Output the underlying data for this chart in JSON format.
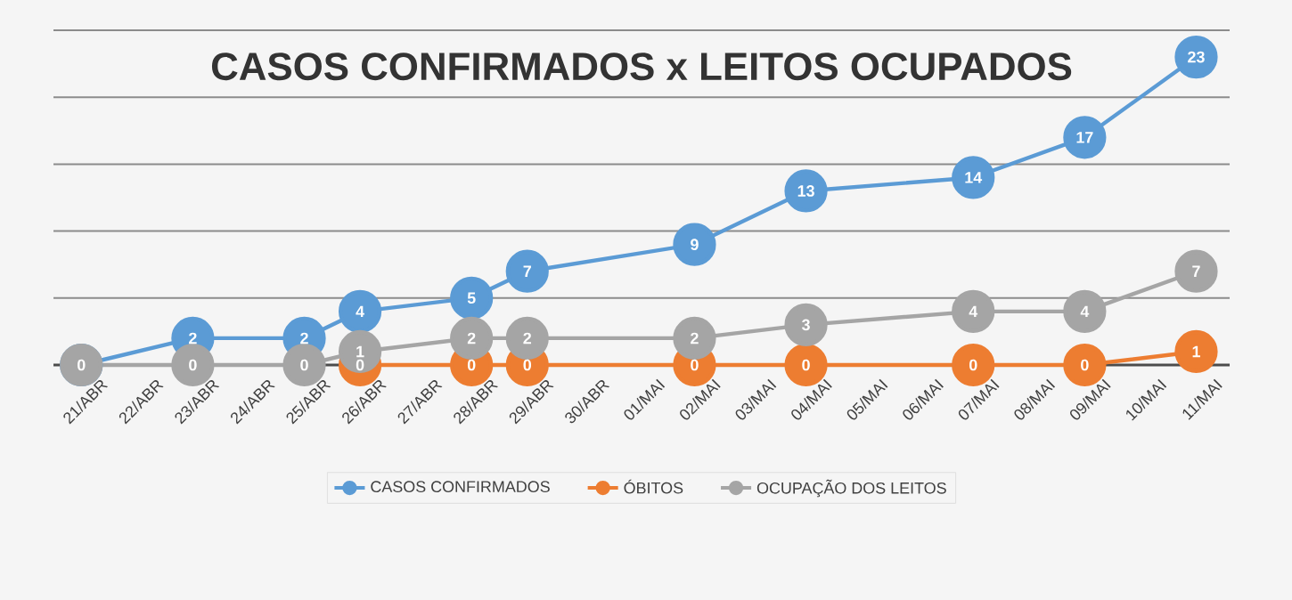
{
  "chart_data": {
    "type": "line",
    "title": "CASOS CONFIRMADOS x LEITOS OCUPADOS",
    "categories": [
      "21/ABR",
      "22/ABR",
      "23/ABR",
      "24/ABR",
      "25/ABR",
      "26/ABR",
      "27/ABR",
      "28/ABR",
      "29/ABR",
      "30/ABR",
      "01/MAI",
      "02/MAI",
      "03/MAI",
      "04/MAI",
      "05/MAI",
      "06/MAI",
      "07/MAI",
      "08/MAI",
      "09/MAI",
      "10/MAI",
      "11/MAI"
    ],
    "series": [
      {
        "name": "CASOS CONFIRMADOS",
        "color": "#5b9bd5",
        "values": [
          0,
          null,
          2,
          null,
          2,
          4,
          null,
          5,
          7,
          null,
          null,
          9,
          null,
          13,
          null,
          null,
          14,
          null,
          17,
          null,
          23
        ],
        "value_labels": [
          null,
          null,
          "2",
          null,
          "2",
          "4",
          null,
          "5",
          "7",
          null,
          null,
          "9",
          null,
          "13",
          null,
          null,
          "14",
          null,
          "17",
          null,
          "23"
        ]
      },
      {
        "name": "ÓBITOS",
        "color": "#ed7d31",
        "values": [
          null,
          null,
          null,
          null,
          null,
          0,
          null,
          0,
          0,
          null,
          null,
          0,
          null,
          0,
          null,
          null,
          0,
          null,
          0,
          null,
          1
        ],
        "value_labels": [
          null,
          null,
          null,
          null,
          null,
          "0",
          null,
          "0",
          "0",
          null,
          null,
          "0",
          null,
          "0",
          null,
          null,
          "0",
          null,
          "0",
          null,
          "1"
        ]
      },
      {
        "name": "OCUPAÇÃO DOS LEITOS",
        "color": "#a5a5a5",
        "values": [
          0,
          null,
          0,
          null,
          0,
          1,
          null,
          2,
          2,
          null,
          null,
          2,
          null,
          3,
          null,
          null,
          4,
          null,
          4,
          null,
          7
        ],
        "value_labels": [
          "0",
          null,
          "0",
          null,
          "0",
          "1",
          null,
          "2",
          "2",
          null,
          null,
          "2",
          null,
          "3",
          null,
          null,
          "4",
          null,
          "4",
          null,
          "7"
        ]
      }
    ],
    "ylim": [
      0,
      25
    ],
    "yticks": [
      {
        "value": 0,
        "label": null
      },
      {
        "value": 5,
        "label": null
      },
      {
        "value": 10,
        "label": null
      },
      {
        "value": 15,
        "label": null
      },
      {
        "value": 20,
        "label": null
      },
      {
        "value": 25,
        "label": null
      }
    ],
    "tick_labels": "x",
    "grid": "y",
    "legend": "bottom",
    "marker": "circle",
    "line_style": "solid"
  }
}
